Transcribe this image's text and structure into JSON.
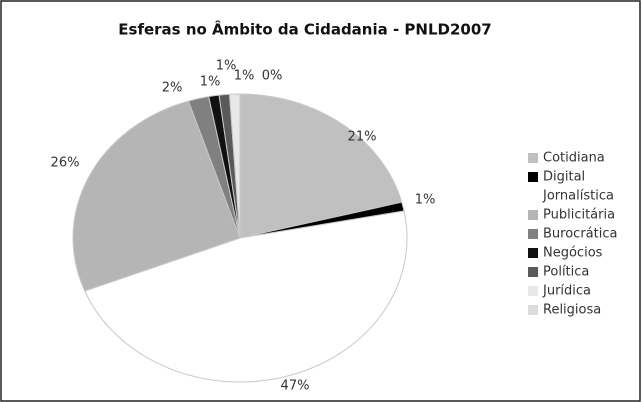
{
  "chart_data": {
    "type": "pie",
    "title": "Esferas no Âmbito da Cidadania - PNLD2007",
    "categories": [
      "Cotidiana",
      "Digital",
      "Jornalística",
      "Publicitária",
      "Burocrática",
      "Negócios",
      "Política",
      "Jurídica",
      "Religiosa"
    ],
    "values": [
      21,
      1,
      47,
      26,
      2,
      1,
      1,
      1,
      0
    ],
    "value_labels": [
      "21%",
      "1%",
      "47%",
      "26%",
      "2%",
      "1%",
      "1%",
      "1%",
      "0%"
    ],
    "colors": [
      "#c0c0c0",
      "#000000",
      "#ffffff",
      "#b5b5b5",
      "#808080",
      "#111111",
      "#5a5a5a",
      "#e8e8e8",
      "#dcdcdc"
    ],
    "legend": "right"
  }
}
